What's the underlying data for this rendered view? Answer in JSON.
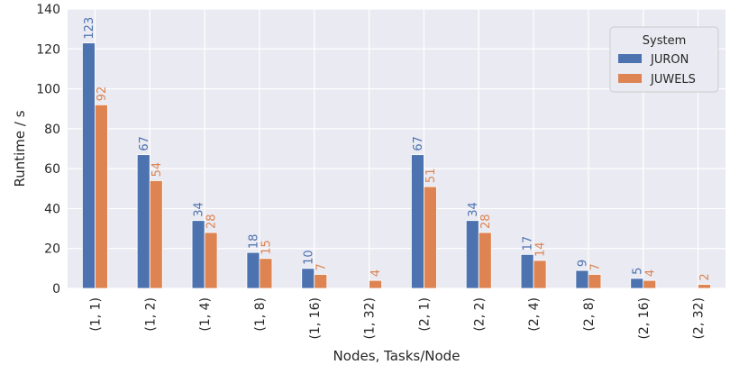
{
  "chart_data": {
    "type": "bar",
    "xlabel": "Nodes, Tasks/Node",
    "ylabel": "Runtime / s",
    "ylim": [
      0,
      140
    ],
    "yticks": [
      0,
      20,
      40,
      60,
      80,
      100,
      120,
      140
    ],
    "grid": true,
    "legend_placement": "top-right",
    "legend_title": "System",
    "categories": [
      "(1, 1)",
      "(1, 2)",
      "(1, 4)",
      "(1, 8)",
      "(1, 16)",
      "(1, 32)",
      "(2, 1)",
      "(2, 2)",
      "(2, 4)",
      "(2, 8)",
      "(2, 16)",
      "(2, 32)"
    ],
    "series": [
      {
        "name": "JURON",
        "color": "#4c72b0",
        "values": [
          123,
          67,
          34,
          18,
          10,
          null,
          67,
          34,
          17,
          9,
          5,
          null
        ],
        "labels": [
          "123",
          "67",
          "34",
          "18",
          "10",
          "",
          "67",
          "34",
          "17",
          "9",
          "5",
          ""
        ]
      },
      {
        "name": "JUWELS",
        "color": "#dd8452",
        "values": [
          92,
          54,
          28,
          15,
          7,
          4,
          51,
          28,
          14,
          7,
          4,
          2
        ],
        "labels": [
          "92",
          "54",
          "28",
          "15",
          "7",
          "4",
          "51",
          "28",
          "14",
          "7",
          "4",
          "2"
        ]
      }
    ],
    "background_color": "#eaeaf2",
    "grid_color": "#ffffff"
  }
}
